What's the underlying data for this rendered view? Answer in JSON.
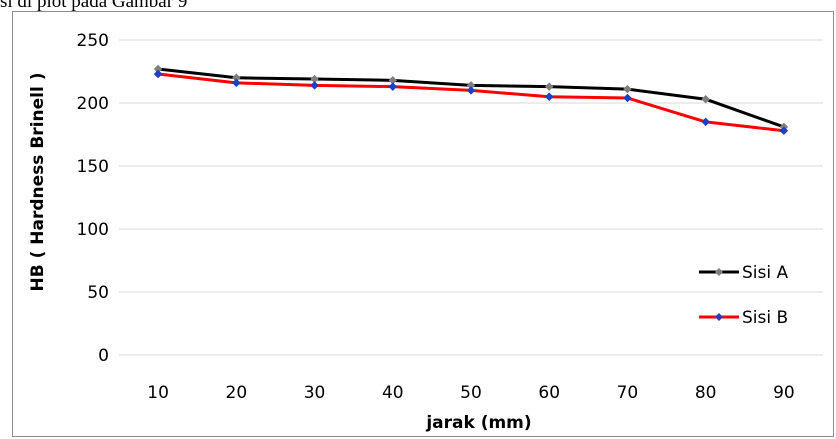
{
  "caption": "si di plot pada Gambar 9",
  "chart_data": {
    "type": "line",
    "x": [
      10,
      20,
      30,
      40,
      50,
      60,
      70,
      80,
      90
    ],
    "xlabel": "jarak (mm)",
    "ylabel": "HB ( Hardness Brinell )",
    "ylim": [
      0,
      250
    ],
    "yticks": [
      0,
      50,
      100,
      150,
      200,
      250
    ],
    "grid": true,
    "legend_position": "right",
    "series": [
      {
        "name": "Sisi A",
        "color": "#000000",
        "marker_color": "#7f7f7f",
        "marker": "diamond",
        "values": [
          227,
          220,
          219,
          218,
          214,
          213,
          211,
          203,
          181
        ]
      },
      {
        "name": "Sisi B",
        "color": "#ff0000",
        "marker_color": "#1f3fbf",
        "marker": "diamond",
        "values": [
          223,
          216,
          214,
          213,
          210,
          205,
          204,
          185,
          178
        ]
      }
    ]
  }
}
